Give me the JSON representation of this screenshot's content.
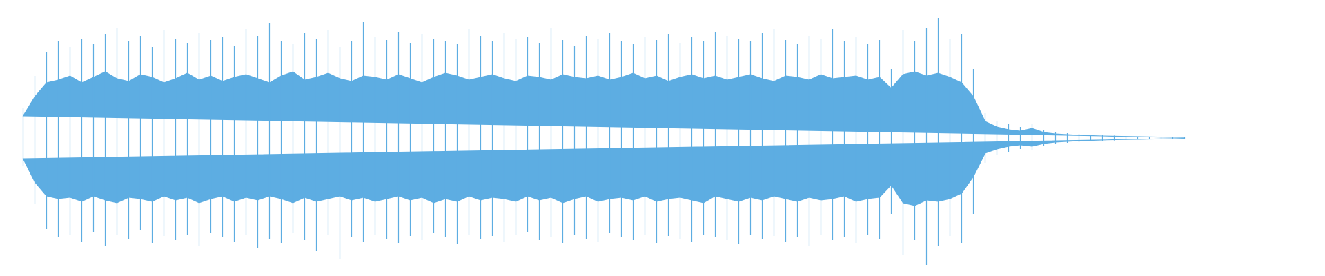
{
  "chart_data": {
    "type": "waveform",
    "ylim": [
      -1,
      1
    ],
    "series": [
      {
        "color": "#5dade2",
        "values": [
          0.16,
          0.3,
          0.4,
          0.42,
          0.45,
          0.4,
          0.44,
          0.48,
          0.43,
          0.41,
          0.46,
          0.44,
          0.4,
          0.43,
          0.47,
          0.42,
          0.45,
          0.41,
          0.44,
          0.46,
          0.43,
          0.4,
          0.45,
          0.48,
          0.42,
          0.44,
          0.47,
          0.43,
          0.41,
          0.45,
          0.44,
          0.42,
          0.46,
          0.43,
          0.4,
          0.44,
          0.47,
          0.45,
          0.42,
          0.44,
          0.46,
          0.43,
          0.41,
          0.45,
          0.44,
          0.42,
          0.46,
          0.44,
          0.43,
          0.45,
          0.42,
          0.44,
          0.47,
          0.43,
          0.45,
          0.41,
          0.44,
          0.46,
          0.43,
          0.45,
          0.42,
          0.44,
          0.46,
          0.43,
          0.41,
          0.45,
          0.44,
          0.42,
          0.46,
          0.43,
          0.44,
          0.45,
          0.42,
          0.44,
          0.36,
          0.46,
          0.48,
          0.45,
          0.47,
          0.44,
          0.4,
          0.3,
          0.12,
          0.08,
          0.06,
          0.05,
          0.07,
          0.04,
          0.03,
          0.025,
          0.02,
          0.018,
          0.015,
          0.012,
          0.01,
          0.01,
          0.008,
          0.006,
          0.005,
          0.004
        ]
      },
      {
        "color": "#5dade2",
        "values": [
          -0.15,
          -0.32,
          -0.42,
          -0.44,
          -0.43,
          -0.46,
          -0.42,
          -0.45,
          -0.47,
          -0.43,
          -0.44,
          -0.46,
          -0.42,
          -0.45,
          -0.43,
          -0.47,
          -0.44,
          -0.42,
          -0.46,
          -0.43,
          -0.45,
          -0.42,
          -0.44,
          -0.47,
          -0.43,
          -0.46,
          -0.44,
          -0.42,
          -0.45,
          -0.43,
          -0.46,
          -0.44,
          -0.42,
          -0.45,
          -0.43,
          -0.47,
          -0.44,
          -0.46,
          -0.42,
          -0.45,
          -0.43,
          -0.44,
          -0.46,
          -0.42,
          -0.45,
          -0.43,
          -0.47,
          -0.44,
          -0.42,
          -0.46,
          -0.44,
          -0.43,
          -0.45,
          -0.42,
          -0.46,
          -0.44,
          -0.43,
          -0.45,
          -0.47,
          -0.42,
          -0.44,
          -0.46,
          -0.43,
          -0.45,
          -0.42,
          -0.44,
          -0.46,
          -0.43,
          -0.45,
          -0.44,
          -0.42,
          -0.46,
          -0.44,
          -0.43,
          -0.34,
          -0.47,
          -0.49,
          -0.45,
          -0.46,
          -0.44,
          -0.4,
          -0.28,
          -0.11,
          -0.08,
          -0.06,
          -0.05,
          -0.06,
          -0.04,
          -0.03,
          -0.025,
          -0.02,
          -0.018,
          -0.015,
          -0.012,
          -0.01,
          -0.01,
          -0.008,
          -0.006,
          -0.005,
          -0.004
        ]
      },
      {
        "color": "#5dade2",
        "values": [
          0.22,
          0.45,
          0.62,
          0.7,
          0.66,
          0.72,
          0.68,
          0.75,
          0.8,
          0.7,
          0.74,
          0.66,
          0.78,
          0.72,
          0.69,
          0.76,
          0.71,
          0.73,
          0.67,
          0.79,
          0.74,
          0.83,
          0.7,
          0.68,
          0.76,
          0.72,
          0.78,
          0.66,
          0.7,
          0.84,
          0.73,
          0.71,
          0.77,
          0.69,
          0.75,
          0.72,
          0.7,
          0.68,
          0.79,
          0.74,
          0.7,
          0.76,
          0.72,
          0.73,
          0.69,
          0.8,
          0.71,
          0.67,
          0.74,
          0.72,
          0.76,
          0.7,
          0.68,
          0.73,
          0.71,
          0.75,
          0.69,
          0.73,
          0.7,
          0.77,
          0.74,
          0.72,
          0.7,
          0.76,
          0.79,
          0.71,
          0.68,
          0.74,
          0.72,
          0.79,
          0.7,
          0.73,
          0.68,
          0.71,
          0.5,
          0.78,
          0.7,
          0.8,
          0.87,
          0.72,
          0.75,
          0.5,
          0.18,
          0.12,
          0.1,
          0.08,
          0.1,
          0.06,
          0.045,
          0.035,
          0.03,
          0.025,
          0.02,
          0.018,
          0.015,
          0.012,
          0.01,
          0.008,
          0.006,
          0.005
        ]
      },
      {
        "color": "#5dade2",
        "values": [
          -0.2,
          -0.48,
          -0.66,
          -0.72,
          -0.7,
          -0.75,
          -0.68,
          -0.78,
          -0.7,
          -0.73,
          -0.67,
          -0.76,
          -0.71,
          -0.74,
          -0.7,
          -0.78,
          -0.69,
          -0.72,
          -0.75,
          -0.7,
          -0.8,
          -0.73,
          -0.76,
          -0.69,
          -0.74,
          -0.82,
          -0.7,
          -0.88,
          -0.72,
          -0.75,
          -0.7,
          -0.73,
          -0.76,
          -0.71,
          -0.74,
          -0.69,
          -0.72,
          -0.77,
          -0.7,
          -0.73,
          -0.71,
          -0.75,
          -0.7,
          -0.68,
          -0.74,
          -0.72,
          -0.76,
          -0.7,
          -0.73,
          -0.75,
          -0.69,
          -0.72,
          -0.74,
          -0.7,
          -0.76,
          -0.71,
          -0.73,
          -0.75,
          -0.7,
          -0.72,
          -0.74,
          -0.77,
          -0.7,
          -0.73,
          -0.71,
          -0.75,
          -0.72,
          -0.78,
          -0.7,
          -0.74,
          -0.72,
          -0.76,
          -0.7,
          -0.73,
          -0.55,
          -0.85,
          -0.74,
          -0.92,
          -0.78,
          -0.71,
          -0.76,
          -0.55,
          -0.18,
          -0.12,
          -0.1,
          -0.08,
          -0.09,
          -0.06,
          -0.045,
          -0.035,
          -0.03,
          -0.025,
          -0.02,
          -0.018,
          -0.015,
          -0.012,
          -0.01,
          -0.008,
          -0.006,
          -0.005
        ]
      }
    ]
  }
}
